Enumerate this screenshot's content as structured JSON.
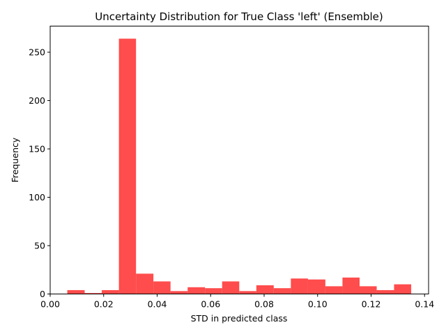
{
  "chart_data": {
    "type": "bar",
    "title": "Uncertainty Distribution for True Class 'left' (Ensemble)",
    "xlabel": "STD in predicted class",
    "ylabel": "Frequency",
    "xlim": [
      0.0,
      0.1415
    ],
    "ylim": [
      0,
      277
    ],
    "grid": false,
    "bar_color": "#ff4c4c",
    "x_ticks": [
      0.0,
      0.02,
      0.04,
      0.06,
      0.08,
      0.1,
      0.12,
      0.14
    ],
    "x_tick_labels": [
      "0.00",
      "0.02",
      "0.04",
      "0.06",
      "0.08",
      "0.10",
      "0.12",
      "0.14"
    ],
    "y_ticks": [
      0,
      50,
      100,
      150,
      200,
      250
    ],
    "y_tick_labels": [
      "0",
      "50",
      "100",
      "150",
      "200",
      "250"
    ],
    "bins": [
      {
        "x0": 0.0064,
        "x1": 0.0129,
        "value": 4
      },
      {
        "x0": 0.0129,
        "x1": 0.0193,
        "value": 1
      },
      {
        "x0": 0.0193,
        "x1": 0.0257,
        "value": 4
      },
      {
        "x0": 0.0257,
        "x1": 0.0321,
        "value": 264
      },
      {
        "x0": 0.0321,
        "x1": 0.0386,
        "value": 21
      },
      {
        "x0": 0.0386,
        "x1": 0.045,
        "value": 13
      },
      {
        "x0": 0.045,
        "x1": 0.0514,
        "value": 3
      },
      {
        "x0": 0.0514,
        "x1": 0.0579,
        "value": 7
      },
      {
        "x0": 0.0579,
        "x1": 0.0643,
        "value": 6
      },
      {
        "x0": 0.0643,
        "x1": 0.0707,
        "value": 13
      },
      {
        "x0": 0.0707,
        "x1": 0.0771,
        "value": 3
      },
      {
        "x0": 0.0771,
        "x1": 0.0836,
        "value": 9
      },
      {
        "x0": 0.0836,
        "x1": 0.09,
        "value": 6
      },
      {
        "x0": 0.09,
        "x1": 0.0964,
        "value": 16
      },
      {
        "x0": 0.0964,
        "x1": 0.1029,
        "value": 15
      },
      {
        "x0": 0.1029,
        "x1": 0.1093,
        "value": 8
      },
      {
        "x0": 0.1093,
        "x1": 0.1157,
        "value": 17
      },
      {
        "x0": 0.1157,
        "x1": 0.1221,
        "value": 8
      },
      {
        "x0": 0.1221,
        "x1": 0.1286,
        "value": 4
      },
      {
        "x0": 0.1286,
        "x1": 0.135,
        "value": 10
      }
    ]
  }
}
